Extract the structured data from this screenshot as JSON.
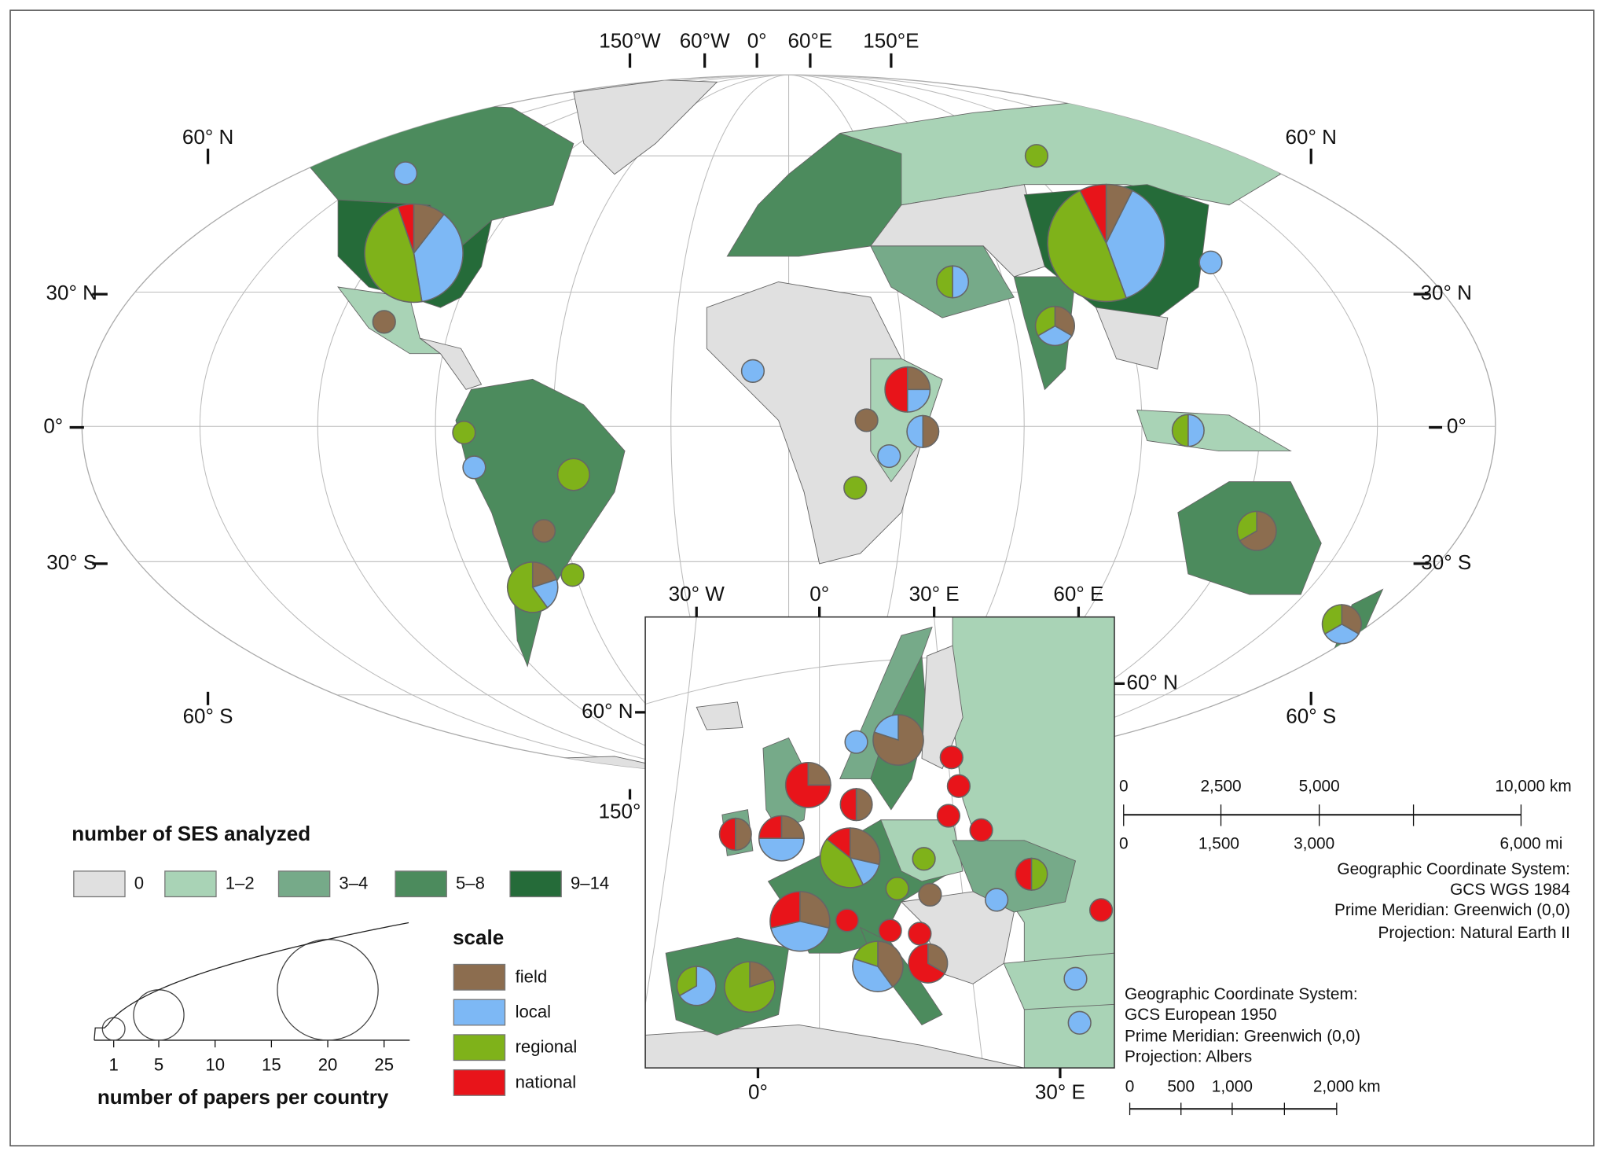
{
  "graticule": {
    "top": [
      "150°W",
      "60°W",
      "0°",
      "60°E",
      "150°E"
    ],
    "left": [
      "60° N",
      "30° N",
      "0°",
      "30° S",
      "60° S"
    ],
    "right": [
      "60° N",
      "30° N",
      "0°",
      "30° S",
      "60° S"
    ],
    "bottom": [
      "150°"
    ]
  },
  "inset": {
    "top": [
      "30° W",
      "0°",
      "30° E",
      "60° E"
    ],
    "left": [
      "60° N"
    ],
    "right": [
      "60° N"
    ],
    "bottom": [
      "0°",
      "30° E"
    ]
  },
  "choropleth_legend": {
    "title": "number of SES analyzed",
    "classes": [
      {
        "label": "0",
        "color": "#e0e0e0"
      },
      {
        "label": "1–2",
        "color": "#a9d3b6"
      },
      {
        "label": "3–4",
        "color": "#76aa89"
      },
      {
        "label": "5–8",
        "color": "#4c8b5d"
      },
      {
        "label": "9–14",
        "color": "#256b39"
      }
    ]
  },
  "scale_legend": {
    "title": "scale",
    "items": [
      {
        "label": "field",
        "color": "#8c6d4f"
      },
      {
        "label": "local",
        "color": "#7db8f5"
      },
      {
        "label": "regional",
        "color": "#7fb21a"
      },
      {
        "label": "national",
        "color": "#e8141a"
      }
    ]
  },
  "size_legend": {
    "title": "number of papers per country",
    "ticks": [
      1,
      5,
      10,
      15,
      20,
      25
    ],
    "circles": [
      1,
      5,
      20
    ]
  },
  "world_scalebar": {
    "km": [
      "0",
      "2,500",
      "5,000",
      "10,000 km"
    ],
    "mi": [
      "0",
      "1,500",
      "3,000",
      "6,000 mi"
    ]
  },
  "world_projection": [
    "Geographic Coordinate System:",
    "GCS WGS 1984",
    "Prime Meridian: Greenwich (0,0)",
    "Projection: Natural Earth II"
  ],
  "inset_projection": [
    "Geographic Coordinate System:",
    "GCS European 1950",
    "Prime Meridian: Greenwich (0,0)",
    "Projection: Albers"
  ],
  "inset_scalebar": [
    "0",
    "500",
    "1,000",
    "2,000 km"
  ],
  "pies": [
    {
      "values": [
        2,
        7,
        9,
        1
      ]
    },
    {
      "values": [
        0,
        1,
        0,
        0
      ]
    },
    {
      "values": [
        1,
        0,
        0,
        0
      ]
    },
    {
      "values": [
        0,
        0,
        1,
        0
      ]
    },
    {
      "values": [
        0,
        1,
        0,
        0
      ]
    },
    {
      "values": [
        0,
        0,
        2,
        0
      ]
    },
    {
      "values": [
        1,
        0,
        0,
        0
      ]
    },
    {
      "values": [
        1,
        1,
        3,
        0
      ]
    },
    {
      "values": [
        0,
        0,
        1,
        0
      ]
    },
    {
      "values": [
        0,
        0,
        1,
        0
      ]
    },
    {
      "values": [
        2,
        10,
        13,
        2
      ]
    },
    {
      "values": [
        0,
        1,
        0,
        0
      ]
    },
    {
      "values": [
        0,
        1,
        1,
        0
      ]
    },
    {
      "values": [
        1,
        1,
        1,
        0
      ]
    },
    {
      "values": [
        0,
        1,
        0,
        0
      ]
    },
    {
      "values": [
        1,
        1,
        0,
        2
      ]
    },
    {
      "values": [
        1,
        0,
        0,
        0
      ]
    },
    {
      "values": [
        1,
        1,
        0,
        0
      ]
    },
    {
      "values": [
        0,
        1,
        0,
        0
      ]
    },
    {
      "values": [
        0,
        0,
        1,
        0
      ]
    },
    {
      "values": [
        0,
        1,
        1,
        0
      ]
    },
    {
      "values": [
        2,
        0,
        1,
        0
      ]
    },
    {
      "values": [
        1,
        1,
        1,
        0
      ]
    },
    {
      "values": [
        0,
        1,
        0,
        0
      ]
    },
    {
      "values": [
        4,
        1,
        0,
        0
      ]
    },
    {
      "values": [
        1,
        0,
        0,
        3
      ]
    },
    {
      "values": [
        1,
        0,
        0,
        1
      ]
    },
    {
      "values": [
        1,
        0,
        0,
        1
      ]
    },
    {
      "values": [
        1,
        2,
        0,
        1
      ]
    },
    {
      "values": [
        2,
        1,
        3,
        1
      ]
    },
    {
      "values": [
        2,
        3,
        0,
        2
      ]
    },
    {
      "values": [
        0,
        2,
        1,
        0
      ]
    },
    {
      "values": [
        1,
        0,
        4,
        0
      ]
    },
    {
      "values": [
        2,
        2,
        1,
        0
      ]
    },
    {
      "values": [
        1,
        0,
        0,
        2
      ]
    },
    {
      "values": [
        0,
        0,
        1,
        0
      ]
    },
    {
      "values": [
        0,
        0,
        1,
        0
      ]
    },
    {
      "values": [
        1,
        0,
        0,
        0
      ]
    },
    {
      "values": [
        0,
        0,
        1,
        1
      ]
    },
    {
      "values": [
        0,
        0,
        0,
        1
      ]
    },
    {
      "values": [
        0,
        0,
        0,
        1
      ]
    },
    {
      "values": [
        0,
        0,
        0,
        1
      ]
    },
    {
      "values": [
        0,
        0,
        0,
        1
      ]
    },
    {
      "values": [
        0,
        0,
        0,
        1
      ]
    },
    {
      "values": [
        0,
        0,
        0,
        1
      ]
    },
    {
      "values": [
        0,
        1,
        0,
        0
      ]
    },
    {
      "values": [
        0,
        0,
        0,
        1
      ]
    },
    {
      "values": [
        0,
        0,
        0,
        1
      ]
    },
    {
      "values": [
        0,
        1,
        0,
        0
      ]
    },
    {
      "values": [
        0,
        1,
        0,
        0
      ]
    }
  ]
}
